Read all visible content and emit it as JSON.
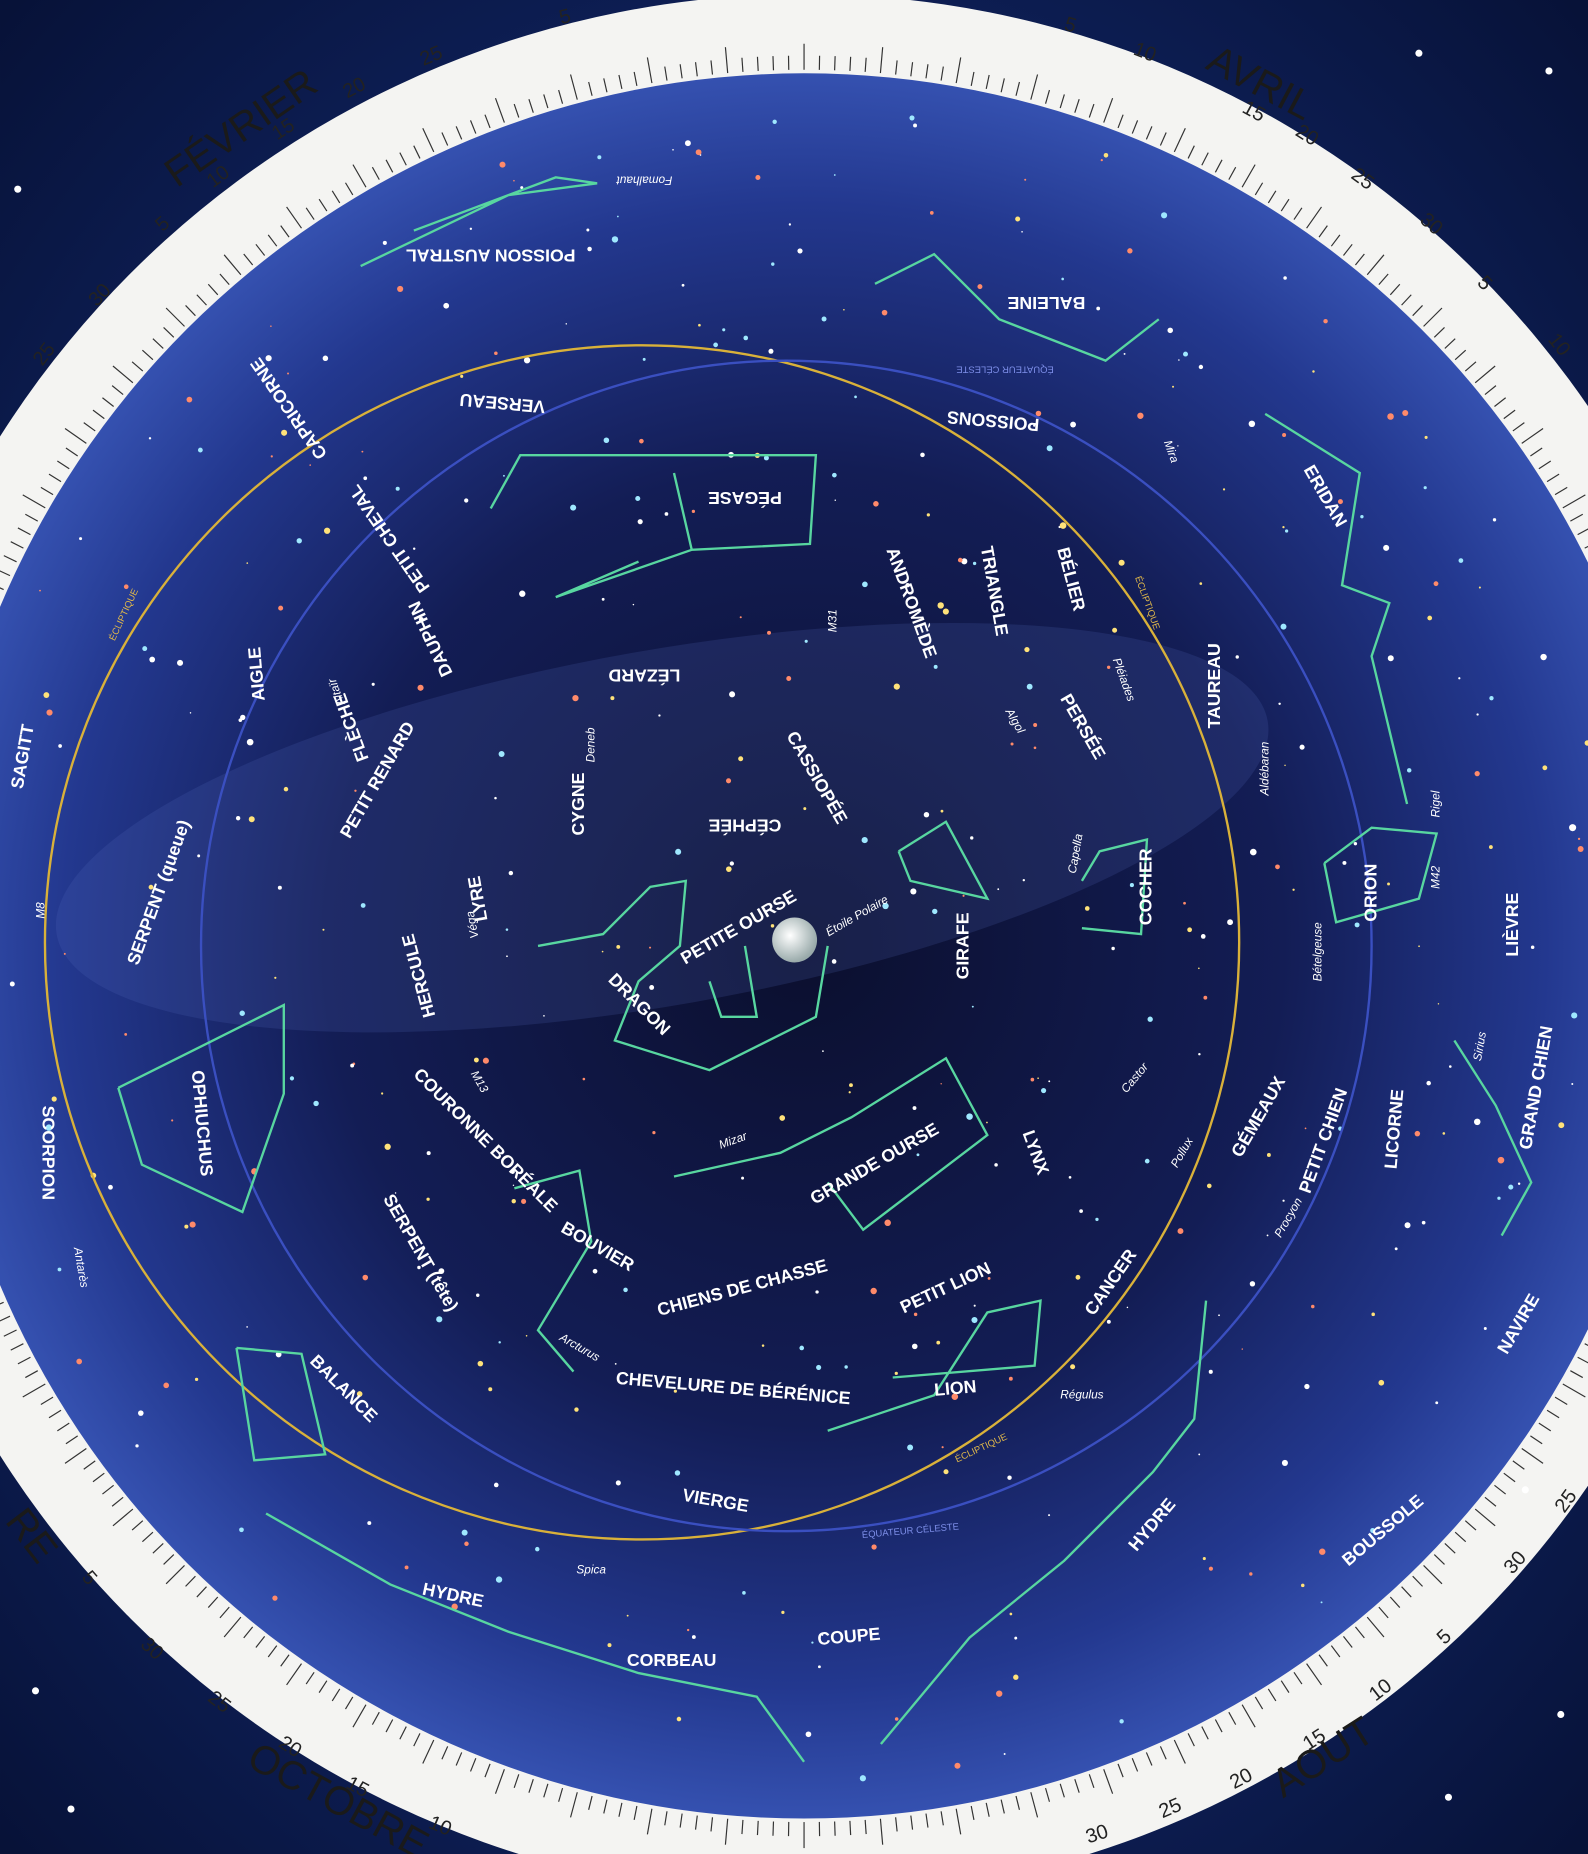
{
  "ring": {
    "months": [
      "FÉVRIER",
      "AVRIL",
      "RE",
      "OCTOBRE",
      "AOUT"
    ],
    "numbers": [
      "25",
      "20",
      "15",
      "10",
      "5",
      "30",
      "25",
      "5",
      "5",
      "10",
      "15",
      "20",
      "25",
      "30",
      "5",
      "10",
      "5",
      "30",
      "25",
      "20",
      "15",
      "10",
      "30",
      "25",
      "20",
      "15",
      "10",
      "5",
      "30",
      "25"
    ]
  },
  "constellations": [
    "POISSON AUSTRAL",
    "BALEINE",
    "VERSEAU",
    "CAPRICORNE",
    "POISSONS",
    "PÉGASE",
    "ERIDAN",
    "ANDROMÈDE",
    "TRIANGLE",
    "BÉLIER",
    "PETIT CHEVAL",
    "DAUPHIN",
    "AIGLE",
    "LÉZARD",
    "PERSÉE",
    "TAUREAU",
    "CASSIOPÉE",
    "FLÈCHE",
    "PETIT RENARD",
    "CYGNE",
    "CÉPHÉE",
    "SAGITT",
    "SERPENT (queue)",
    "LYRE",
    "PETITE OURSE",
    "GIRAFE",
    "COCHER",
    "ORION",
    "LIÈVRE",
    "HERCULE",
    "DRAGON",
    "OPHIUCHUS",
    "SCORPION",
    "COURONNE BORÉALE",
    "GRANDE OURSE",
    "GÉMEAUX",
    "PETIT CHIEN",
    "LICORNE",
    "GRAND CHIEN",
    "LYNX",
    "SERPENT (tête)",
    "BOUVIER",
    "CHIENS DE CHASSE",
    "PETIT LION",
    "CANCER",
    "BALANCE",
    "CHEVELURE DE BÉRÉNICE",
    "LION",
    "VIERGE",
    "HYDRE",
    "NAVIRE",
    "BOUSSOLE",
    "HYDRE",
    "CORBEAU",
    "COUPE"
  ],
  "stars": [
    "Fomalhaut",
    "Mira",
    "Altaïr",
    "Deneb",
    "Véga",
    "M31",
    "Algol",
    "Pléiades",
    "Aldébaran",
    "Rigel",
    "M42",
    "Bételgeuse",
    "Étoile Polaire",
    "Capella",
    "Castor",
    "Pollux",
    "Procyon",
    "Sirius",
    "M13",
    "Mizar",
    "Arcturus",
    "Antarès",
    "Régulus",
    "Spica",
    "M8"
  ],
  "circles": {
    "ecliptic": [
      "ÉCLIPTIQUE",
      "ÉCLIPTIQUE",
      "ÉCLIPTIQUE"
    ],
    "equator": [
      "ÉQUATEUR CÉLESTE",
      "ÉQUATEUR CÉLESTE"
    ]
  }
}
